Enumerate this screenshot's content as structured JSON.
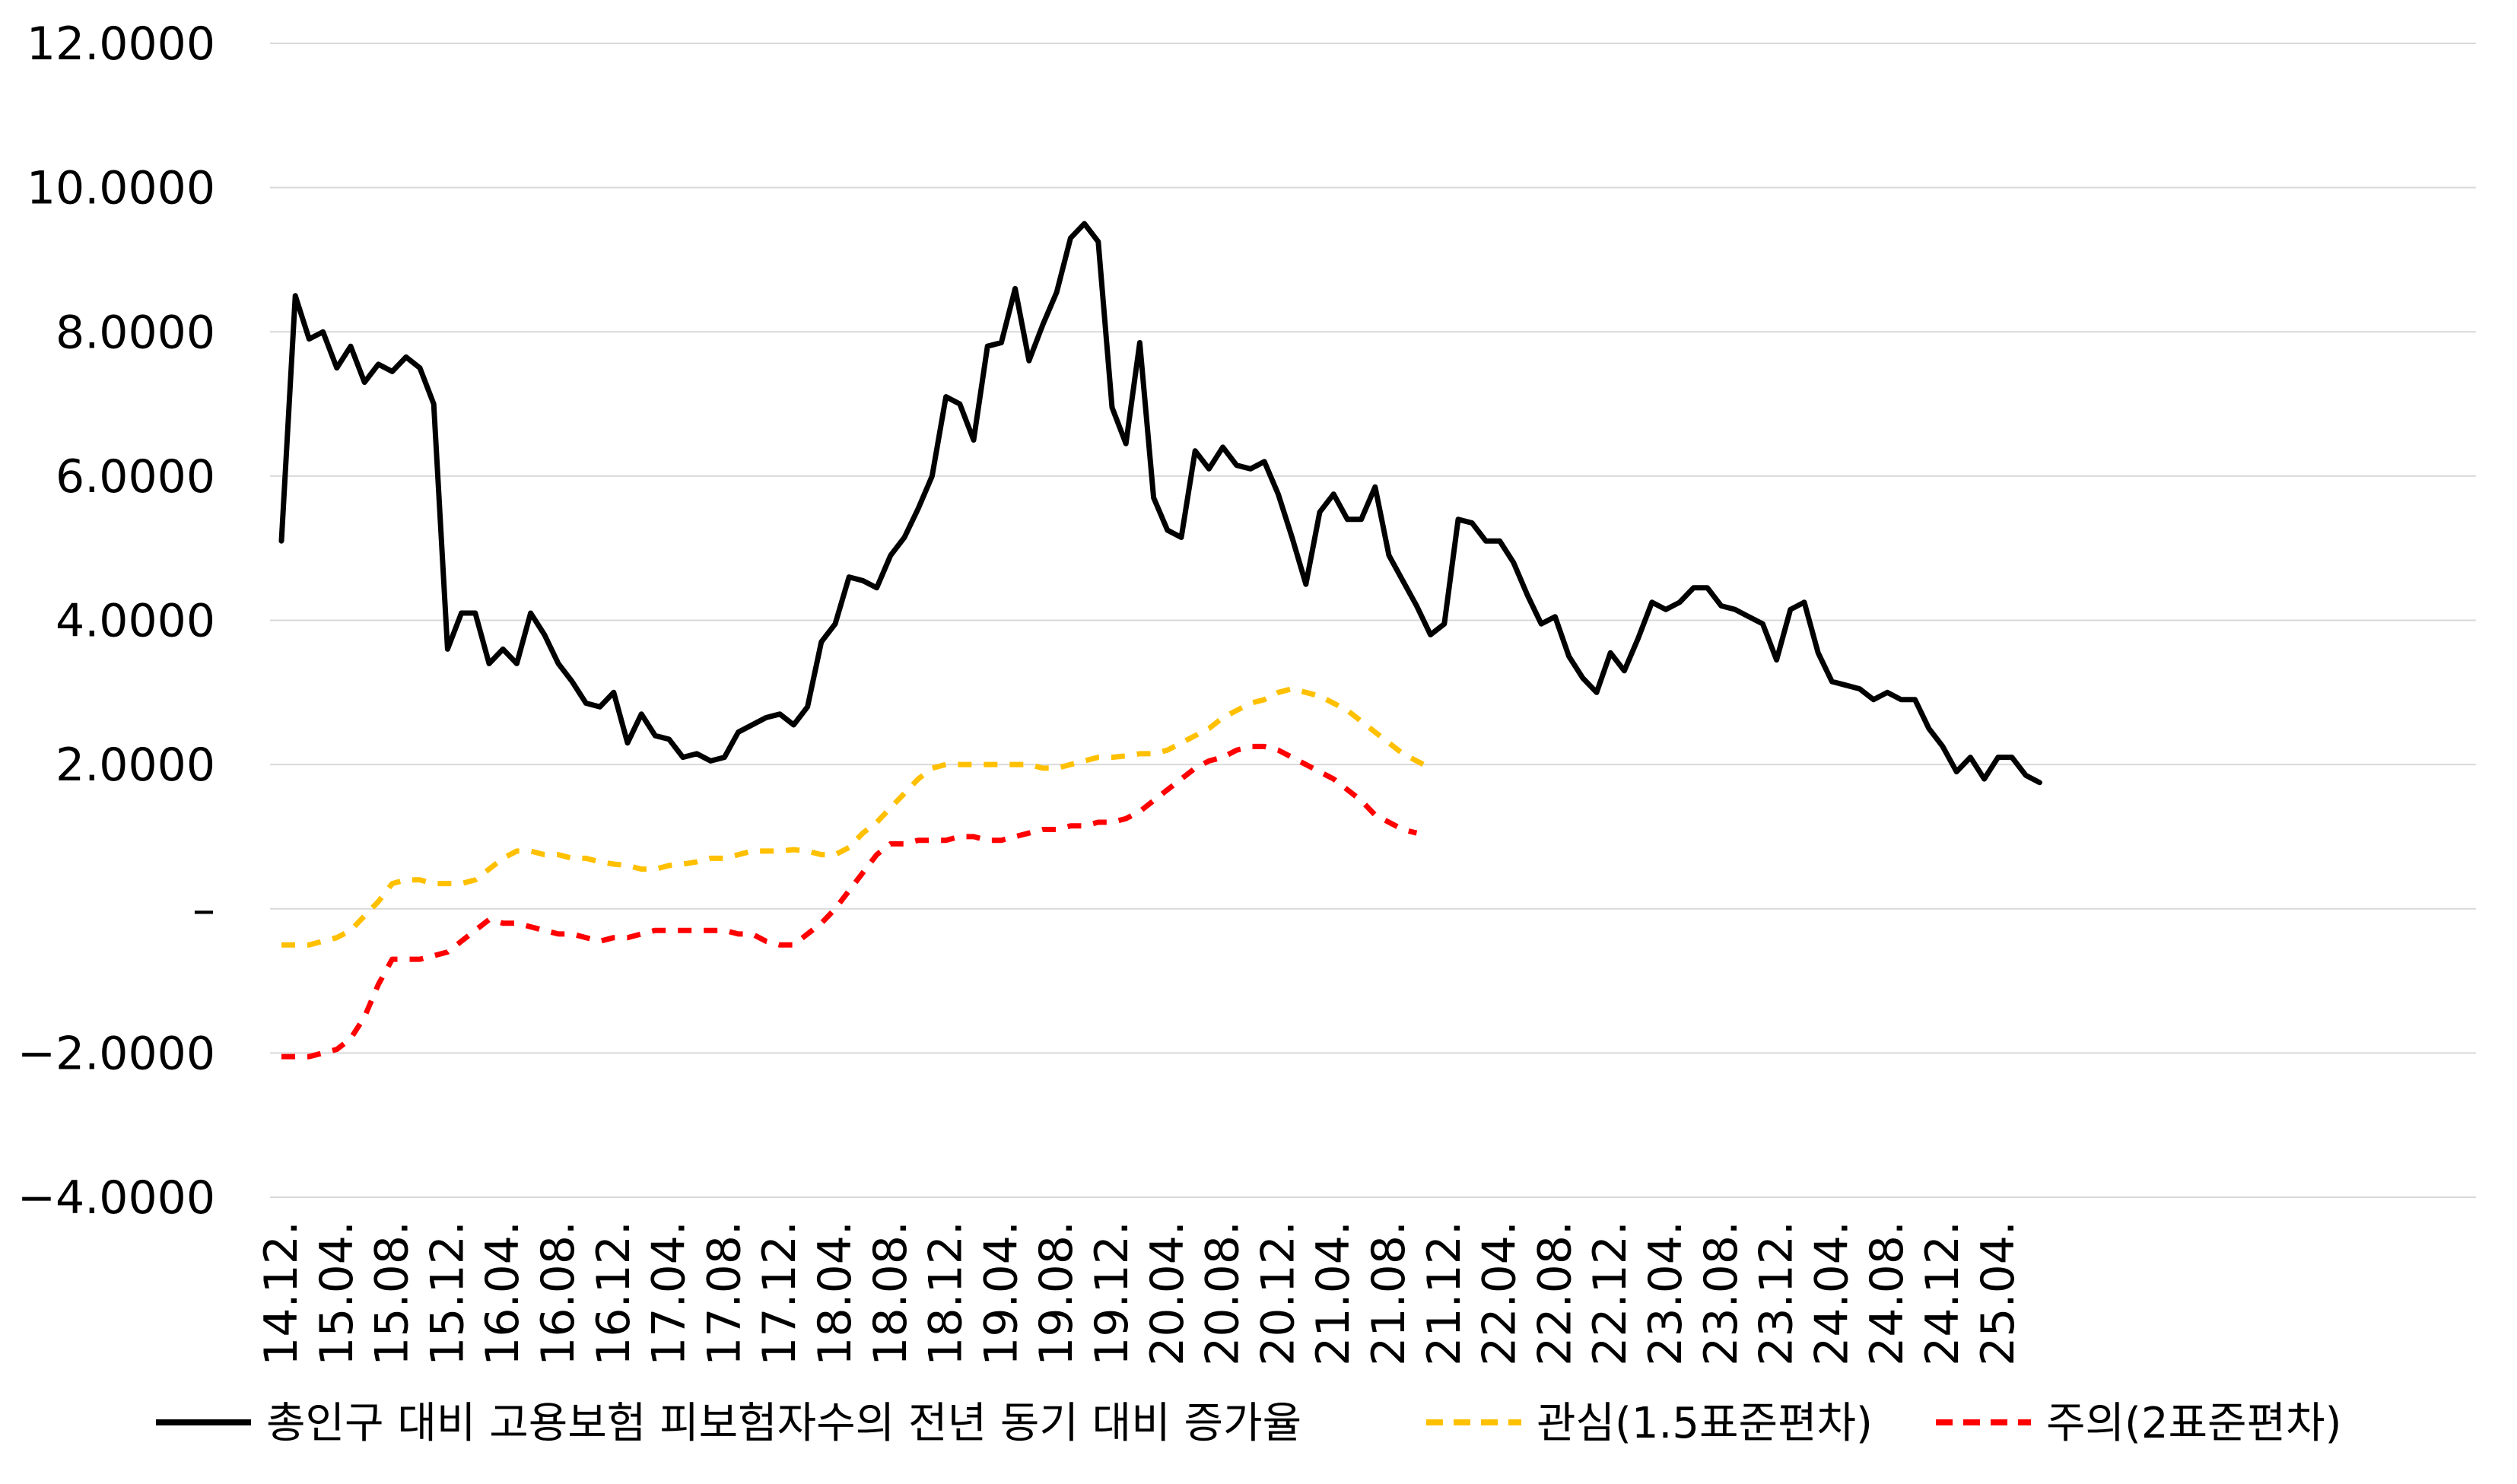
{
  "chart_data": {
    "type": "line",
    "title": "",
    "xlabel": "",
    "ylabel": "",
    "ylim": [
      -4,
      12
    ],
    "y_ticks": [
      {
        "value": 12,
        "label": "12.0000"
      },
      {
        "value": 10,
        "label": "10.0000"
      },
      {
        "value": 8,
        "label": "8.0000"
      },
      {
        "value": 6,
        "label": "6.0000"
      },
      {
        "value": 4,
        "label": "4.0000"
      },
      {
        "value": 2,
        "label": "2.0000"
      },
      {
        "value": 0,
        "label": "–"
      },
      {
        "value": -2,
        "label": "−2.0000"
      },
      {
        "value": -4,
        "label": "−4.0000"
      }
    ],
    "x_tick_labels": [
      "14.12.",
      "15.04.",
      "15.08.",
      "15.12.",
      "16.04.",
      "16.08.",
      "16.12.",
      "17.04.",
      "17.08.",
      "17.12.",
      "18.04.",
      "18.08.",
      "18.12.",
      "19.04.",
      "19.08.",
      "19.12.",
      "20.04.",
      "20.08.",
      "20.12.",
      "21.04.",
      "21.08.",
      "21.12.",
      "22.04.",
      "22.08.",
      "22.12.",
      "23.04.",
      "23.08.",
      "23.12.",
      "24.04.",
      "24.08.",
      "24.12.",
      "25.04."
    ],
    "x_start": "2014-12",
    "grid": true,
    "legend_position": "bottom",
    "series": [
      {
        "name": "총인구 대비 고용보험 피보험자수의 전년 동기 대비 증가율",
        "color": "#000000",
        "dash": "solid",
        "values": [
          5.1,
          8.5,
          7.9,
          8.0,
          7.5,
          7.8,
          7.3,
          7.55,
          7.45,
          7.65,
          7.5,
          7.0,
          3.6,
          4.1,
          4.1,
          3.4,
          3.6,
          3.4,
          4.1,
          3.8,
          3.4,
          3.15,
          2.85,
          2.8,
          3.0,
          2.3,
          2.7,
          2.4,
          2.35,
          2.1,
          2.15,
          2.05,
          2.1,
          2.45,
          2.55,
          2.65,
          2.7,
          2.55,
          2.8,
          3.7,
          3.95,
          4.6,
          4.55,
          4.45,
          4.9,
          5.15,
          5.55,
          6.0,
          7.1,
          7.0,
          6.5,
          7.8,
          7.85,
          8.6,
          7.6,
          8.1,
          8.55,
          9.3,
          9.5,
          9.25,
          6.95,
          6.45,
          7.85,
          5.7,
          5.25,
          5.15,
          6.35,
          6.1,
          6.4,
          6.15,
          6.1,
          6.2,
          5.75,
          5.15,
          4.5,
          5.5,
          5.75,
          5.4,
          5.4,
          5.85,
          4.9,
          4.55,
          4.2,
          3.8,
          3.95,
          5.4,
          5.35,
          5.1,
          5.1,
          4.8,
          4.35,
          3.95,
          4.05,
          3.5,
          3.2,
          3.0,
          3.55,
          3.3,
          3.75,
          4.25,
          4.15,
          4.25,
          4.45,
          4.45,
          4.2,
          4.15,
          4.05,
          3.95,
          3.45,
          4.15,
          4.25,
          3.55,
          3.15,
          3.1,
          3.05,
          2.9,
          3.0,
          2.9,
          2.9,
          2.5,
          2.25,
          1.9,
          2.1,
          1.8,
          2.1,
          2.1,
          1.85,
          1.75
        ]
      },
      {
        "name": "관심(1.5표준편차)",
        "color": "#FFC000",
        "dash": "dashed",
        "values": [
          -0.5,
          -0.5,
          -0.5,
          -0.45,
          -0.4,
          -0.3,
          -0.1,
          0.1,
          0.35,
          0.4,
          0.4,
          0.35,
          0.35,
          0.35,
          0.4,
          0.55,
          0.7,
          0.8,
          0.8,
          0.75,
          0.75,
          0.7,
          0.7,
          0.65,
          0.62,
          0.6,
          0.55,
          0.55,
          0.6,
          0.62,
          0.65,
          0.7,
          0.7,
          0.75,
          0.8,
          0.8,
          0.8,
          0.82,
          0.8,
          0.75,
          0.75,
          0.85,
          1.05,
          1.2,
          1.4,
          1.6,
          1.8,
          1.95,
          2.0,
          2.0,
          2.0,
          2.0,
          2.0,
          2.0,
          2.0,
          1.95,
          1.95,
          2.0,
          2.05,
          2.1,
          2.1,
          2.12,
          2.15,
          2.15,
          2.2,
          2.3,
          2.4,
          2.5,
          2.65,
          2.75,
          2.85,
          2.9,
          3.0,
          3.05,
          3.0,
          2.95,
          2.85,
          2.75,
          2.6,
          2.45,
          2.3,
          2.15,
          2.05,
          1.95
        ]
      },
      {
        "name": "주의(2표준편차)",
        "color": "#FF0000",
        "dash": "dashed",
        "values": [
          -2.05,
          -2.05,
          -2.05,
          -2.0,
          -1.95,
          -1.8,
          -1.5,
          -1.05,
          -0.7,
          -0.7,
          -0.7,
          -0.65,
          -0.6,
          -0.45,
          -0.3,
          -0.15,
          -0.2,
          -0.2,
          -0.25,
          -0.3,
          -0.35,
          -0.35,
          -0.4,
          -0.45,
          -0.4,
          -0.4,
          -0.35,
          -0.3,
          -0.3,
          -0.3,
          -0.3,
          -0.3,
          -0.3,
          -0.35,
          -0.35,
          -0.45,
          -0.5,
          -0.5,
          -0.35,
          -0.2,
          0.0,
          0.25,
          0.5,
          0.75,
          0.9,
          0.9,
          0.95,
          0.95,
          0.95,
          1.0,
          1.0,
          0.95,
          0.95,
          1.0,
          1.05,
          1.1,
          1.1,
          1.15,
          1.15,
          1.2,
          1.2,
          1.25,
          1.35,
          1.5,
          1.65,
          1.8,
          1.95,
          2.05,
          2.1,
          2.2,
          2.25,
          2.25,
          2.2,
          2.1,
          2.0,
          1.9,
          1.8,
          1.65,
          1.5,
          1.3,
          1.2,
          1.1,
          1.05
        ]
      }
    ]
  }
}
